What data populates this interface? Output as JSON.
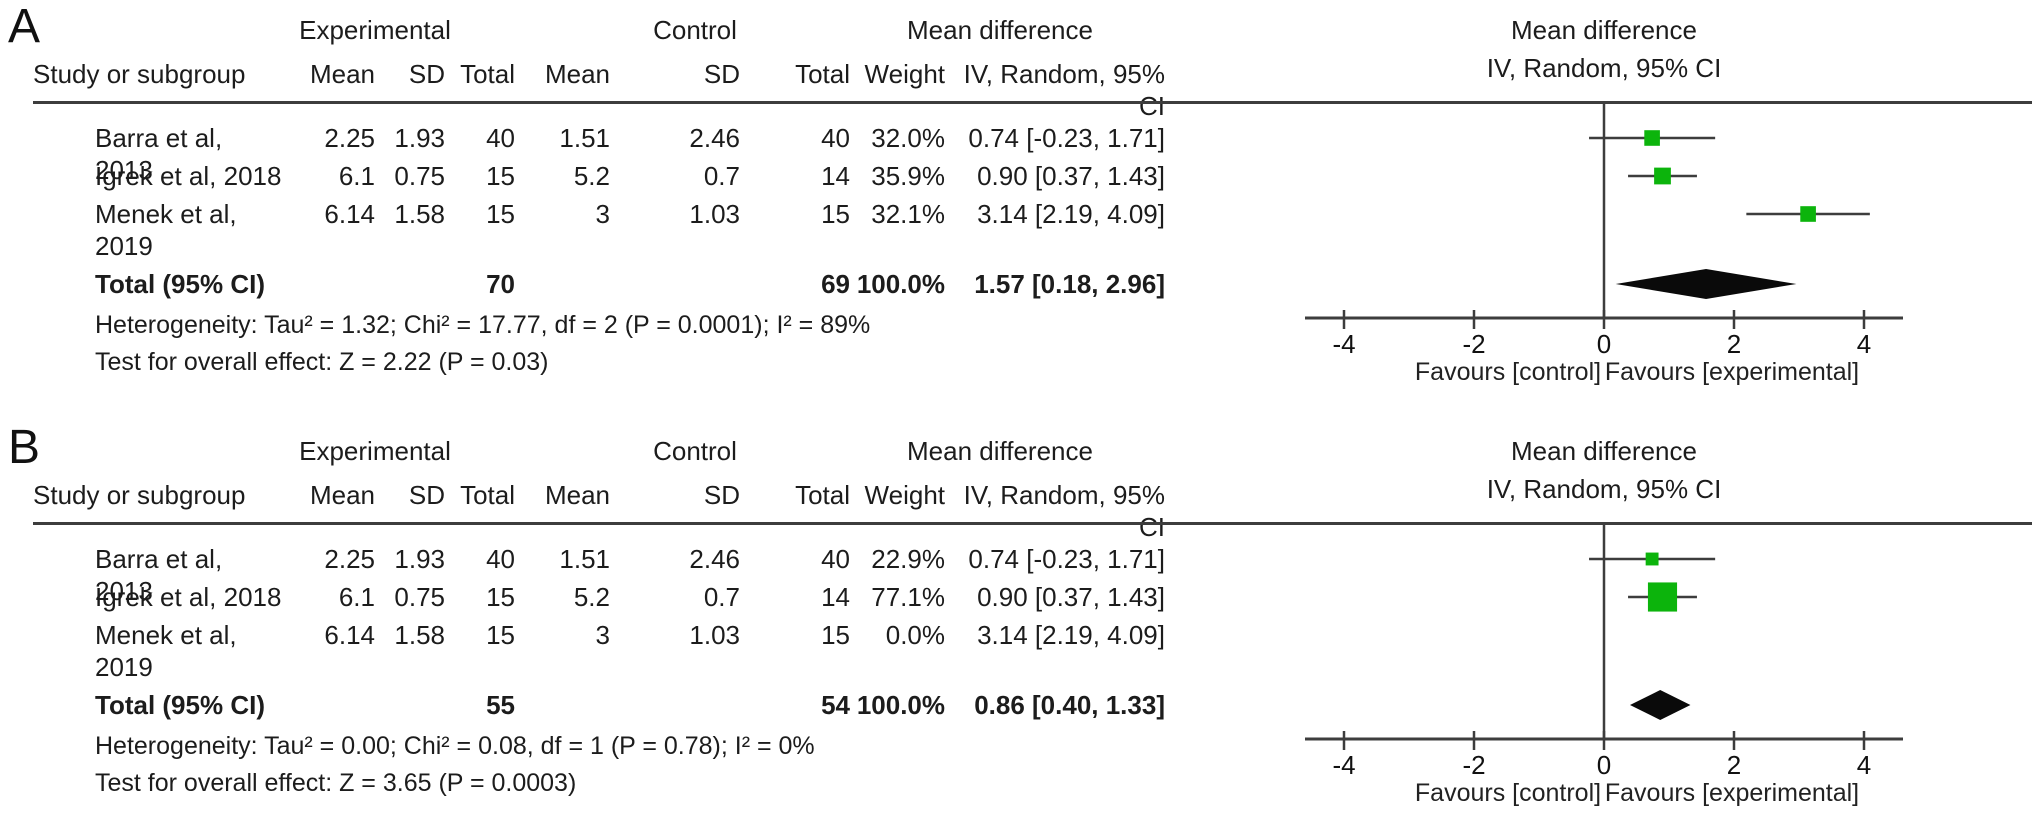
{
  "colors": {
    "marker_green": "#0CB40C",
    "diamond_black": "#0A0A0A",
    "line_gray": "#3D3D3D"
  },
  "panels": [
    {
      "label": "A",
      "headers": {
        "study": "Study or subgroup",
        "experimental": "Experimental",
        "control": "Control",
        "mean": "Mean",
        "sd": "SD",
        "total": "Total",
        "weight": "Weight",
        "md_group": "Mean difference",
        "md_method": "IV, Random, 95% CI"
      },
      "rows": [
        {
          "study": "Barra et al, 2013",
          "e_mean": "2.25",
          "e_sd": "1.93",
          "e_total": "40",
          "c_mean": "1.51",
          "c_sd": "2.46",
          "c_total": "40",
          "weight": "32.0%",
          "md_ci": "0.74 [-0.23, 1.71]"
        },
        {
          "study": "Igrek et al, 2018",
          "e_mean": "6.1",
          "e_sd": "0.75",
          "e_total": "15",
          "c_mean": "5.2",
          "c_sd": "0.7",
          "c_total": "14",
          "weight": "35.9%",
          "md_ci": "0.90 [0.37, 1.43]"
        },
        {
          "study": "Menek et al, 2019",
          "e_mean": "6.14",
          "e_sd": "1.58",
          "e_total": "15",
          "c_mean": "3",
          "c_sd": "1.03",
          "c_total": "15",
          "weight": "32.1%",
          "md_ci": "3.14 [2.19, 4.09]"
        }
      ],
      "total_row": {
        "label": "Total (95% CI)",
        "e_total": "70",
        "c_total": "69",
        "weight": "100.0%",
        "md_ci": "1.57 [0.18, 2.96]"
      },
      "heterogeneity": "Heterogeneity: Tau² = 1.32; Chi² = 17.77, df = 2 (P = 0.0001); I² = 89%",
      "overall_effect": "Test for overall effect: Z = 2.22 (P = 0.03)",
      "plot_header": {
        "line1": "Mean difference",
        "line2": "IV, Random, 95% CI"
      },
      "favours_left": "Favours [control]",
      "favours_right": "Favours [experimental]"
    },
    {
      "label": "B",
      "headers": {
        "study": "Study or subgroup",
        "experimental": "Experimental",
        "control": "Control",
        "mean": "Mean",
        "sd": "SD",
        "total": "Total",
        "weight": "Weight",
        "md_group": "Mean difference",
        "md_method": "IV, Random, 95% CI"
      },
      "rows": [
        {
          "study": "Barra et al, 2013",
          "e_mean": "2.25",
          "e_sd": "1.93",
          "e_total": "40",
          "c_mean": "1.51",
          "c_sd": "2.46",
          "c_total": "40",
          "weight": "22.9%",
          "md_ci": "0.74 [-0.23, 1.71]"
        },
        {
          "study": "Igrek et al, 2018",
          "e_mean": "6.1",
          "e_sd": "0.75",
          "e_total": "15",
          "c_mean": "5.2",
          "c_sd": "0.7",
          "c_total": "14",
          "weight": "77.1%",
          "md_ci": "0.90 [0.37, 1.43]"
        },
        {
          "study": "Menek et al, 2019",
          "e_mean": "6.14",
          "e_sd": "1.58",
          "e_total": "15",
          "c_mean": "3",
          "c_sd": "1.03",
          "c_total": "15",
          "weight": "0.0%",
          "md_ci": "3.14 [2.19, 4.09]"
        }
      ],
      "total_row": {
        "label": "Total (95% CI)",
        "e_total": "55",
        "c_total": "54",
        "weight": "100.0%",
        "md_ci": "0.86 [0.40, 1.33]"
      },
      "heterogeneity": "Heterogeneity: Tau² = 0.00; Chi² = 0.08, df = 1 (P = 0.78); I² = 0%",
      "overall_effect": "Test for overall effect: Z = 3.65 (P = 0.0003)",
      "plot_header": {
        "line1": "Mean difference",
        "line2": "IV, Random, 95% CI"
      },
      "favours_left": "Favours [control]",
      "favours_right": "Favours [experimental]"
    }
  ],
  "chart_data": [
    {
      "type": "forest",
      "title": "Mean difference",
      "method": "IV, Random, 95% CI",
      "xlim": [
        -4.6,
        4.6
      ],
      "ticks": [
        -4,
        -2,
        0,
        2,
        4
      ],
      "xlabel_left": "Favours [control]",
      "xlabel_right": "Favours [experimental]",
      "studies": [
        {
          "name": "Barra et al, 2013",
          "exp_mean": 2.25,
          "exp_sd": 1.93,
          "exp_total": 40,
          "ctrl_mean": 1.51,
          "ctrl_sd": 2.46,
          "ctrl_total": 40,
          "weight_pct": 32.0,
          "md": 0.74,
          "ci_low": -0.23,
          "ci_high": 1.71
        },
        {
          "name": "Igrek et al, 2018",
          "exp_mean": 6.1,
          "exp_sd": 0.75,
          "exp_total": 15,
          "ctrl_mean": 5.2,
          "ctrl_sd": 0.7,
          "ctrl_total": 14,
          "weight_pct": 35.9,
          "md": 0.9,
          "ci_low": 0.37,
          "ci_high": 1.43
        },
        {
          "name": "Menek et al, 2019",
          "exp_mean": 6.14,
          "exp_sd": 1.58,
          "exp_total": 15,
          "ctrl_mean": 3,
          "ctrl_sd": 1.03,
          "ctrl_total": 15,
          "weight_pct": 32.1,
          "md": 3.14,
          "ci_low": 2.19,
          "ci_high": 4.09
        }
      ],
      "total": {
        "label": "Total (95% CI)",
        "exp_total": 70,
        "ctrl_total": 69,
        "weight_pct": 100.0,
        "md": 1.57,
        "ci_low": 0.18,
        "ci_high": 2.96
      },
      "heterogeneity": "Tau² = 1.32; Chi² = 17.77, df = 2 (P = 0.0001); I² = 89%",
      "overall_effect": "Z = 2.22 (P = 0.03)"
    },
    {
      "type": "forest",
      "title": "Mean difference",
      "method": "IV, Random, 95% CI",
      "xlim": [
        -4.6,
        4.6
      ],
      "ticks": [
        -4,
        -2,
        0,
        2,
        4
      ],
      "xlabel_left": "Favours [control]",
      "xlabel_right": "Favours [experimental]",
      "studies": [
        {
          "name": "Barra et al, 2013",
          "exp_mean": 2.25,
          "exp_sd": 1.93,
          "exp_total": 40,
          "ctrl_mean": 1.51,
          "ctrl_sd": 2.46,
          "ctrl_total": 40,
          "weight_pct": 22.9,
          "md": 0.74,
          "ci_low": -0.23,
          "ci_high": 1.71
        },
        {
          "name": "Igrek et al, 2018",
          "exp_mean": 6.1,
          "exp_sd": 0.75,
          "exp_total": 15,
          "ctrl_mean": 5.2,
          "ctrl_sd": 0.7,
          "ctrl_total": 14,
          "weight_pct": 77.1,
          "md": 0.9,
          "ci_low": 0.37,
          "ci_high": 1.43
        },
        {
          "name": "Menek et al, 2019",
          "exp_mean": 6.14,
          "exp_sd": 1.58,
          "exp_total": 15,
          "ctrl_mean": 3,
          "ctrl_sd": 1.03,
          "ctrl_total": 15,
          "weight_pct": 0.0,
          "md": 3.14,
          "ci_low": 2.19,
          "ci_high": 4.09
        }
      ],
      "total": {
        "label": "Total (95% CI)",
        "exp_total": 55,
        "ctrl_total": 54,
        "weight_pct": 100.0,
        "md": 0.86,
        "ci_low": 0.4,
        "ci_high": 1.33
      },
      "heterogeneity": "Tau² = 0.00; Chi² = 0.08, df = 1 (P = 0.78); I² = 0%",
      "overall_effect": "Z = 3.65 (P = 0.0003)"
    }
  ]
}
